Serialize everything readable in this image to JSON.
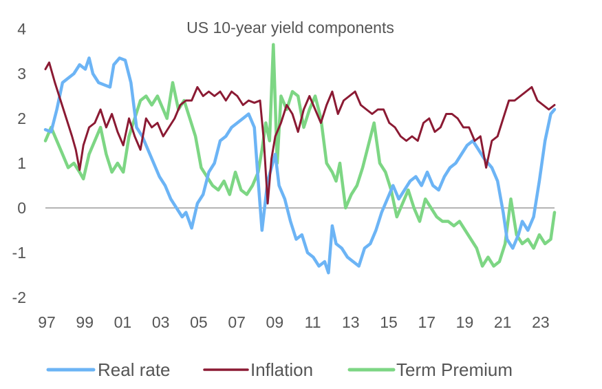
{
  "chart_data": {
    "type": "line",
    "title": "US 10-year yield components",
    "xlabel": "",
    "ylabel": "",
    "xlim": [
      1997.0,
      2023.8
    ],
    "ylim": [
      -2,
      4
    ],
    "y_ticks": [
      "4",
      "3",
      "2",
      "1",
      "0",
      "-1",
      "-2"
    ],
    "y_tick_values": [
      4,
      3,
      2,
      1,
      0,
      -1,
      -2
    ],
    "x_ticks": [
      "97",
      "99",
      "01",
      "03",
      "05",
      "07",
      "09",
      "11",
      "13",
      "15",
      "17",
      "19",
      "21",
      "23"
    ],
    "x_tick_values": [
      1997,
      1999,
      2001,
      2003,
      2005,
      2007,
      2009,
      2011,
      2013,
      2015,
      2017,
      2019,
      2021,
      2023
    ],
    "grid": false,
    "zero_line": true,
    "legend_position": "bottom",
    "series": [
      {
        "name": "Real rate",
        "color": "#6cb4f5",
        "x": [
          1997.0,
          1997.3,
          1997.6,
          1997.9,
          1998.2,
          1998.5,
          1998.8,
          1999.1,
          1999.3,
          1999.5,
          1999.8,
          2000.1,
          2000.4,
          2000.6,
          2000.9,
          2001.2,
          2001.5,
          2001.8,
          2002.1,
          2002.4,
          2002.7,
          2003.0,
          2003.3,
          2003.6,
          2003.9,
          2004.2,
          2004.4,
          2004.7,
          2005.0,
          2005.3,
          2005.6,
          2005.9,
          2006.2,
          2006.5,
          2006.8,
          2007.1,
          2007.4,
          2007.7,
          2008.0,
          2008.2,
          2008.4,
          2008.7,
          2008.9,
          2009.1,
          2009.3,
          2009.6,
          2009.9,
          2010.2,
          2010.5,
          2010.8,
          2011.1,
          2011.4,
          2011.7,
          2011.9,
          2012.1,
          2012.3,
          2012.6,
          2012.9,
          2013.2,
          2013.5,
          2013.8,
          2014.1,
          2014.4,
          2014.7,
          2015.0,
          2015.3,
          2015.6,
          2015.9,
          2016.2,
          2016.5,
          2016.8,
          2017.1,
          2017.4,
          2017.7,
          2018.0,
          2018.3,
          2018.6,
          2018.9,
          2019.2,
          2019.5,
          2019.8,
          2020.1,
          2020.3,
          2020.5,
          2020.8,
          2021.1,
          2021.3,
          2021.6,
          2021.9,
          2022.1,
          2022.4,
          2022.7,
          2023.0,
          2023.3,
          2023.6,
          2023.8
        ],
        "values": [
          1.75,
          1.7,
          2.2,
          2.8,
          2.9,
          3.0,
          3.2,
          3.1,
          3.35,
          3.0,
          2.8,
          2.75,
          2.7,
          3.2,
          3.35,
          3.3,
          2.8,
          1.8,
          1.6,
          1.3,
          1.0,
          0.7,
          0.5,
          0.2,
          0.0,
          -0.2,
          -0.1,
          -0.45,
          0.1,
          0.3,
          0.8,
          1.0,
          1.5,
          1.6,
          1.8,
          1.9,
          2.0,
          2.1,
          1.8,
          0.6,
          -0.5,
          0.6,
          0.9,
          1.2,
          0.5,
          0.2,
          -0.3,
          -0.7,
          -0.6,
          -1.0,
          -1.1,
          -1.3,
          -1.2,
          -1.45,
          -0.4,
          -0.8,
          -0.9,
          -1.1,
          -1.2,
          -1.3,
          -0.9,
          -0.8,
          -0.5,
          -0.1,
          0.2,
          0.5,
          0.2,
          0.4,
          0.6,
          0.7,
          0.5,
          0.8,
          0.5,
          0.4,
          0.7,
          0.9,
          1.0,
          1.2,
          1.4,
          1.5,
          1.3,
          1.1,
          1.0,
          0.9,
          0.6,
          -0.1,
          -0.7,
          -0.9,
          -0.6,
          -0.3,
          -0.5,
          -0.2,
          0.6,
          1.5,
          2.1,
          2.2
        ]
      },
      {
        "name": "Inflation",
        "color": "#8b1a33",
        "x": [
          1997.0,
          1997.2,
          1997.5,
          1997.8,
          1998.1,
          1998.4,
          1998.6,
          1998.8,
          1999.0,
          1999.3,
          1999.6,
          1999.9,
          2000.2,
          2000.5,
          2000.8,
          2001.1,
          2001.4,
          2001.7,
          2002.0,
          2002.3,
          2002.6,
          2002.9,
          2003.2,
          2003.5,
          2003.8,
          2004.1,
          2004.4,
          2004.7,
          2005.0,
          2005.3,
          2005.6,
          2005.9,
          2006.2,
          2006.5,
          2006.8,
          2007.1,
          2007.4,
          2007.7,
          2008.0,
          2008.3,
          2008.5,
          2008.7,
          2008.9,
          2009.1,
          2009.4,
          2009.7,
          2010.0,
          2010.3,
          2010.6,
          2010.9,
          2011.2,
          2011.5,
          2011.8,
          2012.1,
          2012.4,
          2012.7,
          2013.0,
          2013.3,
          2013.6,
          2013.9,
          2014.2,
          2014.5,
          2014.8,
          2015.1,
          2015.4,
          2015.7,
          2016.0,
          2016.3,
          2016.6,
          2016.9,
          2017.2,
          2017.5,
          2017.8,
          2018.1,
          2018.4,
          2018.7,
          2019.0,
          2019.3,
          2019.6,
          2019.9,
          2020.2,
          2020.5,
          2020.8,
          2021.1,
          2021.4,
          2021.7,
          2022.0,
          2022.3,
          2022.6,
          2022.9,
          2023.2,
          2023.5,
          2023.8
        ],
        "values": [
          3.1,
          3.25,
          2.8,
          2.4,
          2.0,
          1.6,
          1.3,
          0.85,
          1.4,
          1.8,
          1.9,
          2.2,
          1.8,
          2.1,
          1.7,
          1.4,
          2.0,
          1.6,
          1.3,
          2.0,
          1.8,
          1.9,
          1.6,
          1.8,
          2.0,
          2.3,
          2.4,
          2.4,
          2.7,
          2.5,
          2.6,
          2.5,
          2.6,
          2.4,
          2.6,
          2.5,
          2.3,
          2.4,
          2.35,
          2.4,
          1.5,
          0.1,
          1.1,
          1.6,
          1.9,
          2.3,
          2.1,
          1.7,
          2.2,
          2.5,
          2.2,
          1.9,
          2.3,
          2.6,
          2.1,
          2.4,
          2.5,
          2.6,
          2.3,
          2.2,
          2.1,
          2.2,
          2.2,
          1.9,
          1.8,
          1.6,
          1.5,
          1.6,
          1.5,
          1.9,
          2.0,
          1.7,
          1.8,
          2.1,
          2.1,
          2.0,
          1.8,
          1.8,
          1.5,
          1.6,
          0.9,
          1.5,
          1.6,
          2.0,
          2.4,
          2.4,
          2.5,
          2.6,
          2.7,
          2.4,
          2.3,
          2.2,
          2.3
        ]
      },
      {
        "name": "Term Premium",
        "color": "#7dd684",
        "x": [
          1997.0,
          1997.3,
          1997.6,
          1997.9,
          1998.2,
          1998.5,
          1998.8,
          1999.0,
          1999.3,
          1999.6,
          1999.9,
          2000.2,
          2000.5,
          2000.8,
          2001.1,
          2001.4,
          2001.7,
          2002.0,
          2002.3,
          2002.6,
          2002.9,
          2003.2,
          2003.4,
          2003.7,
          2004.0,
          2004.3,
          2004.6,
          2004.9,
          2005.2,
          2005.5,
          2005.8,
          2006.1,
          2006.4,
          2006.7,
          2007.0,
          2007.3,
          2007.6,
          2007.9,
          2008.2,
          2008.4,
          2008.6,
          2008.8,
          2009.0,
          2009.2,
          2009.4,
          2009.7,
          2010.0,
          2010.3,
          2010.6,
          2010.9,
          2011.2,
          2011.5,
          2011.8,
          2012.1,
          2012.3,
          2012.5,
          2012.8,
          2013.1,
          2013.4,
          2013.7,
          2014.0,
          2014.3,
          2014.6,
          2014.9,
          2015.2,
          2015.5,
          2015.8,
          2016.1,
          2016.4,
          2016.7,
          2017.0,
          2017.3,
          2017.6,
          2017.9,
          2018.2,
          2018.5,
          2018.8,
          2019.1,
          2019.4,
          2019.7,
          2020.0,
          2020.3,
          2020.6,
          2020.9,
          2021.2,
          2021.5,
          2021.8,
          2022.1,
          2022.4,
          2022.7,
          2023.0,
          2023.3,
          2023.6,
          2023.8
        ],
        "values": [
          1.5,
          1.8,
          1.5,
          1.2,
          0.9,
          1.0,
          0.8,
          0.65,
          1.2,
          1.5,
          1.8,
          1.2,
          0.8,
          1.0,
          0.8,
          1.6,
          2.0,
          2.4,
          2.5,
          2.3,
          2.5,
          2.2,
          2.0,
          2.8,
          2.2,
          2.4,
          2.0,
          1.6,
          0.9,
          0.7,
          0.5,
          0.4,
          0.6,
          0.3,
          0.8,
          0.4,
          0.3,
          0.5,
          0.8,
          1.3,
          1.9,
          1.5,
          3.65,
          1.0,
          2.5,
          2.2,
          2.6,
          2.5,
          1.8,
          2.2,
          2.5,
          2.0,
          1.0,
          0.8,
          0.6,
          1.0,
          0.0,
          0.3,
          0.5,
          0.9,
          1.4,
          1.9,
          1.0,
          0.8,
          0.4,
          -0.2,
          0.1,
          0.4,
          0.0,
          -0.3,
          0.2,
          0.0,
          -0.2,
          -0.3,
          -0.3,
          -0.4,
          -0.3,
          -0.5,
          -0.7,
          -0.9,
          -1.3,
          -1.1,
          -1.3,
          -1.2,
          -0.8,
          0.2,
          -0.6,
          -0.8,
          -0.7,
          -0.9,
          -0.6,
          -0.8,
          -0.7,
          -0.1
        ]
      }
    ]
  }
}
